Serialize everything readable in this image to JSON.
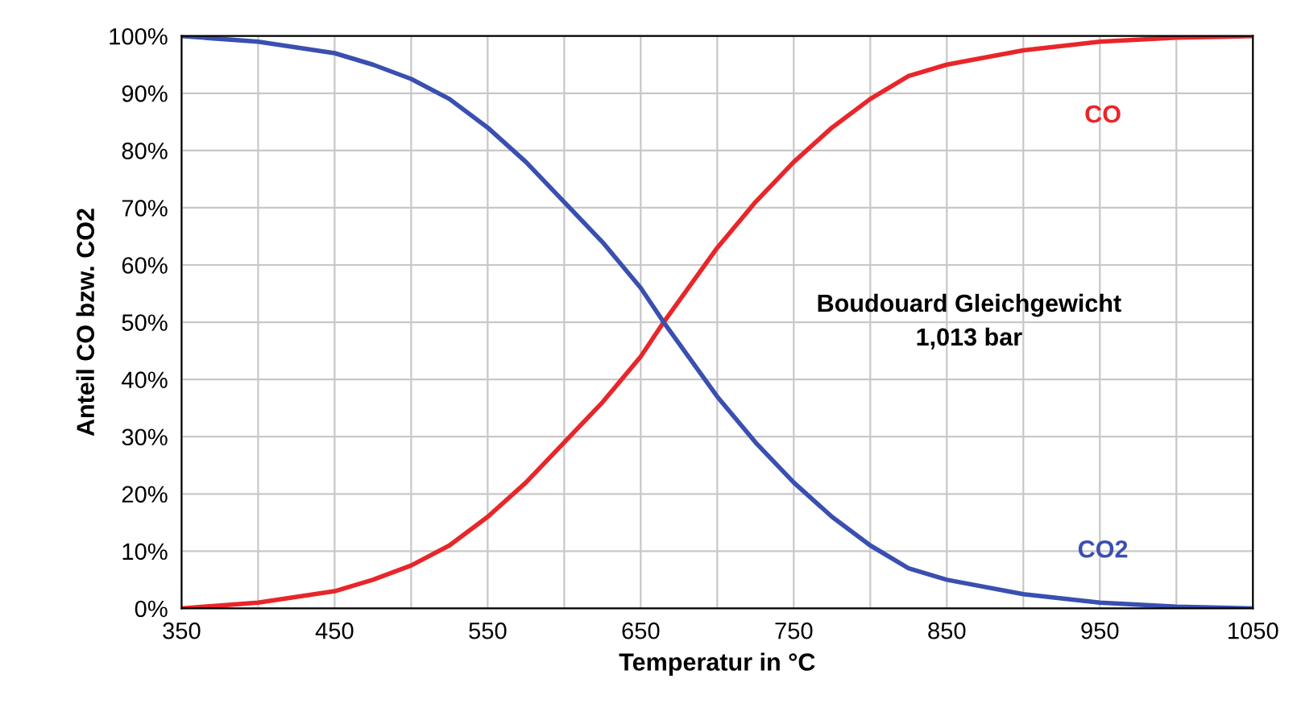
{
  "chart_data": {
    "type": "line",
    "xlabel": "Temperatur in °C",
    "ylabel": "Anteil CO bzw. CO2",
    "annotations": [
      "Boudouard Gleichgewicht\n1,013 bar"
    ],
    "x": [
      350,
      400,
      450,
      475,
      500,
      525,
      550,
      575,
      600,
      625,
      650,
      665,
      700,
      725,
      750,
      775,
      800,
      825,
      850,
      900,
      950,
      1000,
      1050
    ],
    "series": [
      {
        "name": "CO",
        "color": "#e8262a",
        "values": [
          0,
          1,
          3,
          5,
          7.5,
          11,
          16,
          22,
          29,
          36,
          44,
          50,
          63,
          71,
          78,
          84,
          89,
          93,
          95,
          97.5,
          99,
          99.7,
          100
        ]
      },
      {
        "name": "CO2",
        "color": "#3a4fb0",
        "values": [
          100,
          99,
          97,
          95,
          92.5,
          89,
          84,
          78,
          71,
          64,
          56,
          50,
          37,
          29,
          22,
          16,
          11,
          7,
          5,
          2.5,
          1,
          0.3,
          0
        ]
      }
    ],
    "xlim": [
      350,
      1050
    ],
    "ylim": [
      0,
      100
    ],
    "xticks": [
      350,
      {
        "value": 400,
        "label": null
      },
      450,
      {
        "value": 500,
        "label": null
      },
      550,
      {
        "value": 600,
        "label": null
      },
      650,
      {
        "value": 700,
        "label": null
      },
      750,
      {
        "value": 800,
        "label": null
      },
      850,
      {
        "value": 900,
        "label": null
      },
      950,
      {
        "value": 1000,
        "label": null
      },
      1050
    ],
    "yticks": [
      {
        "value": 0,
        "label": "0%"
      },
      {
        "value": 10,
        "label": "10%"
      },
      {
        "value": 20,
        "label": "20%"
      },
      {
        "value": 30,
        "label": "30%"
      },
      {
        "value": 40,
        "label": "40%"
      },
      {
        "value": 50,
        "label": "50%"
      },
      {
        "value": 60,
        "label": "60%"
      },
      {
        "value": 70,
        "label": "70%"
      },
      {
        "value": 80,
        "label": "80%"
      },
      {
        "value": 90,
        "label": "90%"
      },
      {
        "value": 100,
        "label": "100%"
      }
    ],
    "grid": true,
    "legend": false,
    "marker": "none",
    "line_style": "solid"
  }
}
